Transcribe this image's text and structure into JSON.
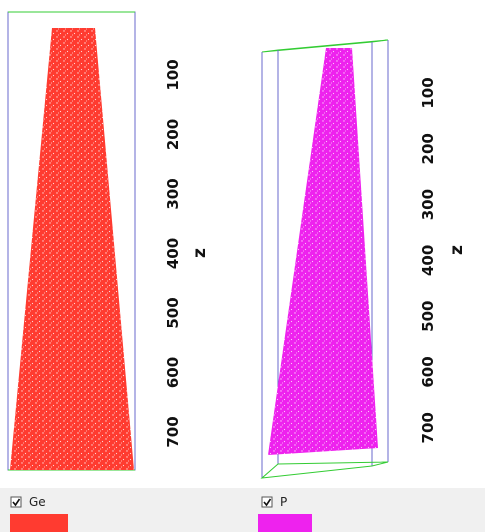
{
  "panels": [
    {
      "axis": {
        "ticks": [
          "100",
          "200",
          "300",
          "400",
          "500",
          "600",
          "700"
        ],
        "label": "z"
      },
      "legend": {
        "label": "Ge"
      }
    },
    {
      "axis": {
        "ticks": [
          "100",
          "200",
          "300",
          "400",
          "500",
          "600",
          "700"
        ],
        "label": "z"
      },
      "legend": {
        "label": "P"
      }
    }
  ]
}
